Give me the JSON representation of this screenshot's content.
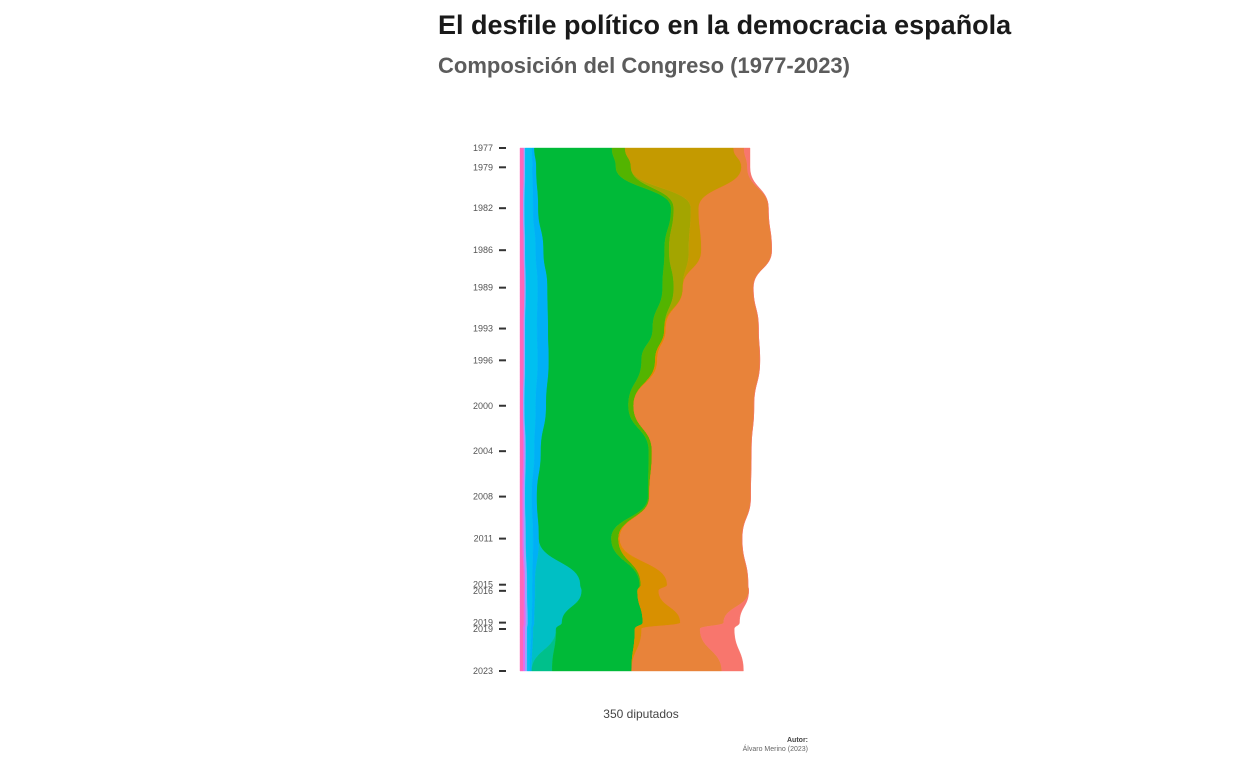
{
  "chart_data": {
    "type": "area",
    "orientation": "vertical-streamgraph",
    "title": "El desfile político en la democracia española",
    "subtitle": "Composición del Congreso (1977-2023)",
    "xlabel": "350 diputados",
    "caption_label": "Autor:",
    "caption_text": "Álvaro Merino (2023)",
    "total_seats": 350,
    "grid": false,
    "years": [
      "1977",
      "1979",
      "1982",
      "1986",
      "1989",
      "1993",
      "1996",
      "2000",
      "2004",
      "2008",
      "2011",
      "2015",
      "2016",
      "2019",
      "2019",
      "2023"
    ],
    "year_values": [
      1977.5,
      1979.2,
      1982.8,
      1986.5,
      1989.8,
      1993.4,
      1996.2,
      2000.2,
      2004.2,
      2008.2,
      2011.9,
      2015.96,
      2016.5,
      2019.3,
      2019.86,
      2023.56
    ],
    "series": [
      {
        "color": "#ff66b8",
        "values": [
          6,
          6,
          5,
          6,
          7,
          6,
          6,
          5,
          5,
          4,
          4,
          6,
          6,
          6,
          5,
          5
        ]
      },
      {
        "color": "#e06ef0",
        "values": [
          0,
          0,
          0,
          0,
          0,
          0,
          0,
          0,
          2,
          2,
          2,
          2,
          2,
          3,
          3,
          3
        ]
      },
      {
        "color": "#8fa8ff",
        "values": [
          2,
          2,
          2,
          2,
          2,
          2,
          2,
          2,
          2,
          2,
          3,
          3,
          3,
          3,
          3,
          3
        ]
      },
      {
        "color": "#00c0f0",
        "values": [
          10,
          11,
          13,
          16,
          18,
          18,
          19,
          17,
          13,
          10,
          11,
          8,
          8,
          6,
          6,
          4
        ]
      },
      {
        "color": "#00b0f6",
        "values": [
          4,
          6,
          8,
          12,
          15,
          17,
          17,
          16,
          10,
          8,
          9,
          4,
          4,
          4,
          3,
          3
        ]
      },
      {
        "color": "#00bfc4",
        "values": [
          0,
          0,
          0,
          0,
          0,
          0,
          0,
          0,
          0,
          0,
          0,
          69,
          71,
          42,
          35,
          0
        ]
      },
      {
        "color": "#00c08b",
        "values": [
          0,
          0,
          0,
          0,
          0,
          0,
          0,
          0,
          0,
          0,
          0,
          0,
          0,
          0,
          0,
          31
        ]
      },
      {
        "color": "#00ba38",
        "values": [
          118,
          121,
          202,
          184,
          175,
          159,
          141,
          125,
          164,
          169,
          110,
          90,
          85,
          123,
          120,
          121
        ]
      },
      {
        "color": "#53b400",
        "values": [
          20,
          23,
          4,
          7,
          17,
          18,
          21,
          8,
          5,
          2,
          11,
          2,
          0,
          0,
          0,
          0
        ]
      },
      {
        "color": "#a3a500",
        "values": [
          0,
          0,
          26,
          30,
          14,
          0,
          0,
          0,
          0,
          0,
          0,
          0,
          0,
          0,
          0,
          0
        ]
      },
      {
        "color": "#c49a00",
        "values": [
          165,
          168,
          12,
          19,
          0,
          0,
          0,
          0,
          0,
          0,
          0,
          0,
          0,
          0,
          0,
          0
        ]
      },
      {
        "color": "#d89000",
        "values": [
          0,
          0,
          0,
          0,
          0,
          0,
          0,
          0,
          0,
          0,
          0,
          40,
          32,
          57,
          10,
          0
        ]
      },
      {
        "color": "#e58700",
        "values": [
          0,
          0,
          0,
          0,
          0,
          2,
          3,
          0,
          0,
          0,
          2,
          0,
          0,
          0,
          0,
          0
        ]
      },
      {
        "color": "#e8833a",
        "values": [
          16,
          9,
          106,
          107,
          107,
          141,
          156,
          183,
          151,
          154,
          186,
          123,
          137,
          66,
          89,
          137
        ]
      },
      {
        "color": "#f8766d",
        "values": [
          9,
          4,
          0,
          0,
          0,
          0,
          0,
          0,
          0,
          0,
          0,
          0,
          0,
          24,
          52,
          33
        ]
      }
    ]
  }
}
